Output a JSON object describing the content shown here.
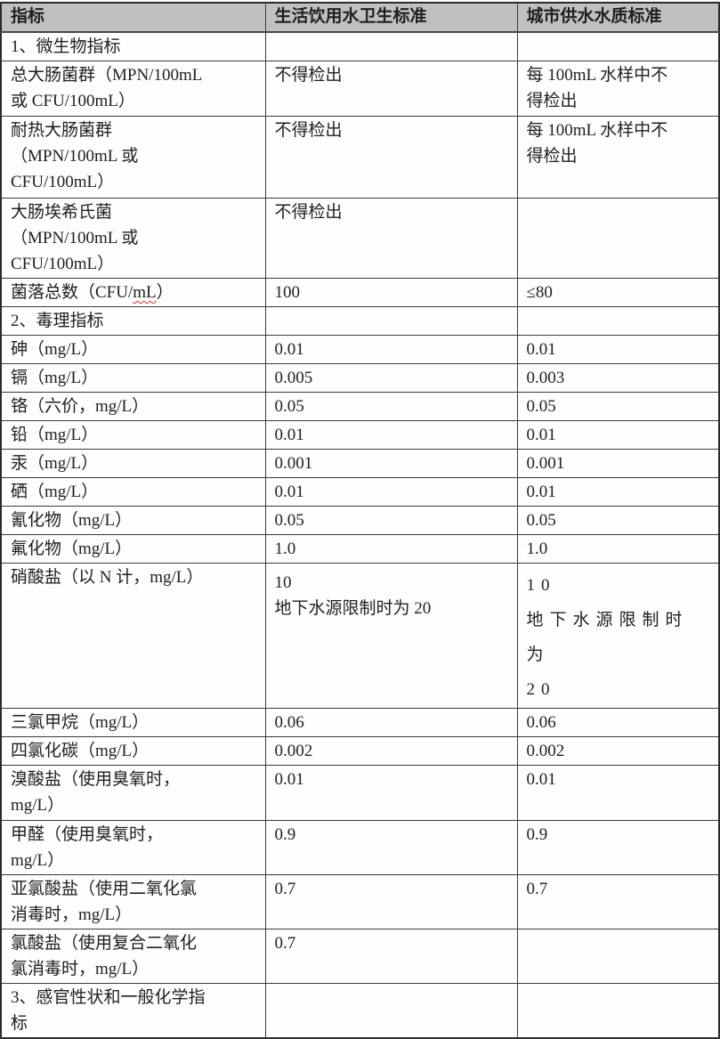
{
  "colors": {
    "header_bg": "#c0bfc1",
    "grid_border": "#3b3b3b",
    "spellcheck_underline": "#e03131",
    "body_bg": "#fdfdfd"
  },
  "table": {
    "headers": [
      "指标",
      "生活饮用水卫生标准",
      "城市供水水质标准"
    ],
    "rows": [
      {
        "c1": "1、微生物指标",
        "c2": "",
        "c3": ""
      },
      {
        "c1": "总大肠菌群（MPN/100mL\n或 CFU/100mL）",
        "c2": "不得检出",
        "c3": "每 100mL 水样中不\n得检出"
      },
      {
        "c1": "耐热大肠菌群\n（MPN/100mL 或\nCFU/100mL）",
        "c2": "不得检出",
        "c3": "每 100mL 水样中不\n得检出"
      },
      {
        "c1": "大肠埃希氏菌\n（MPN/100mL 或\nCFU/100mL）",
        "c2": "不得检出",
        "c3": ""
      },
      {
        "c1_pre": "菌落总数（CFU/",
        "c1_wavy": "mL",
        "c1_post": "）",
        "c2": "100",
        "c3": "≤80"
      },
      {
        "c1": "2、毒理指标",
        "c2": "",
        "c3": ""
      },
      {
        "c1": "砷（mg/L）",
        "c2": "0.01",
        "c3": "0.01"
      },
      {
        "c1": "镉（mg/L）",
        "c2": "0.005",
        "c3": "0.003"
      },
      {
        "c1": "铬（六价，mg/L）",
        "c2": "0.05",
        "c3": "0.05"
      },
      {
        "c1": "铅（mg/L）",
        "c2": "0.01",
        "c3": "0.01"
      },
      {
        "c1": "汞（mg/L）",
        "c2": "0.001",
        "c3": "0.001"
      },
      {
        "c1": "硒（mg/L）",
        "c2": "0.01",
        "c3": "0.01"
      },
      {
        "c1": "氰化物（mg/L）",
        "c2": "0.05",
        "c3": "0.05"
      },
      {
        "c1": "氟化物（mg/L）",
        "c2": "1.0",
        "c3": "1.0"
      },
      {
        "c1": "硝酸盐（以 N 计，mg/L）",
        "c2": "10\n地下水源限制时为 20",
        "c3": "10\n地下水源限制时为\n20"
      },
      {
        "c1": "三氯甲烷（mg/L）",
        "c2": "0.06",
        "c3": "0.06"
      },
      {
        "c1": "四氯化碳（mg/L）",
        "c2": "0.002",
        "c3": "0.002"
      },
      {
        "c1": "溴酸盐（使用臭氧时，\nmg/L）",
        "c2": "0.01",
        "c3": "0.01"
      },
      {
        "c1": "甲醛（使用臭氧时，\nmg/L）",
        "c2": "0.9",
        "c3": "0.9"
      },
      {
        "c1": "亚氯酸盐（使用二氧化氯\n消毒时，mg/L）",
        "c2": "0.7",
        "c3": "0.7"
      },
      {
        "c1": "氯酸盐（使用复合二氧化\n氯消毒时，mg/L）",
        "c2": "0.7",
        "c3": ""
      },
      {
        "c1": "3、感官性状和一般化学指\n标",
        "c2": "",
        "c3": ""
      }
    ]
  }
}
